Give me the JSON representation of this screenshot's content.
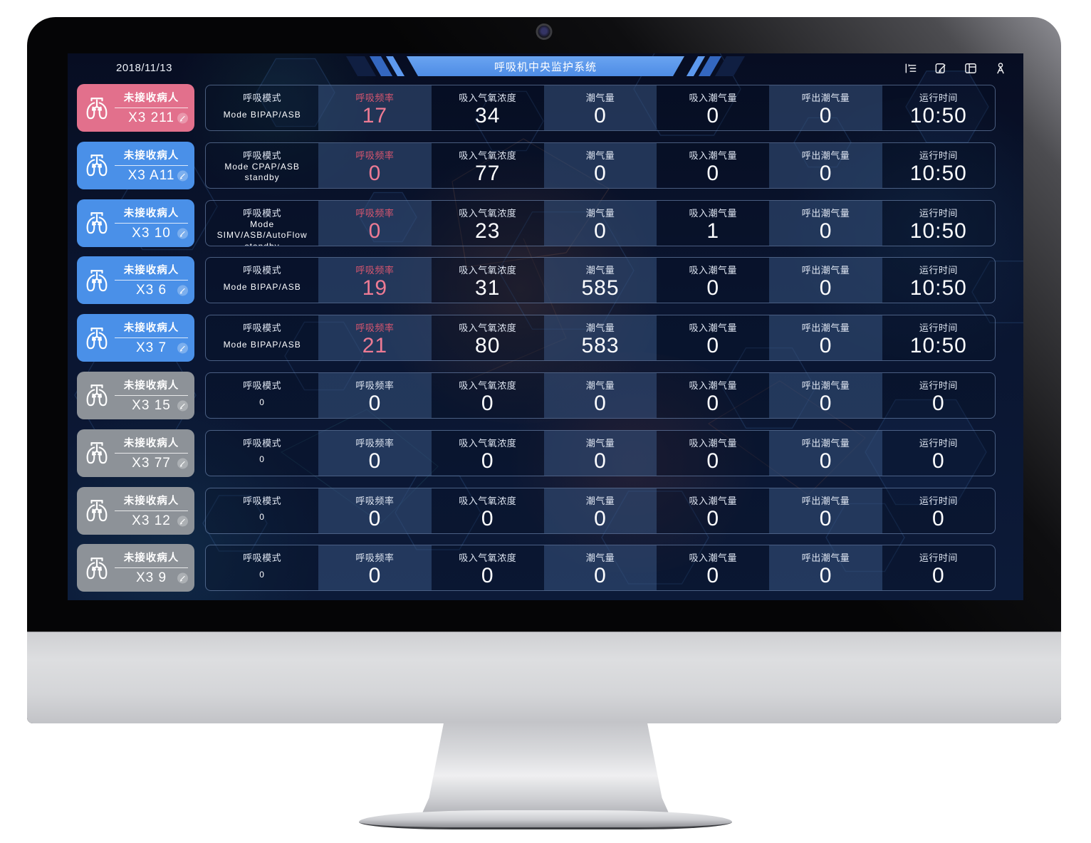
{
  "window": {
    "date": "2018/11/13",
    "title": "呼吸机中央监护系统"
  },
  "toolbar_icons": [
    {
      "name": "menu-fold-icon"
    },
    {
      "name": "edit-note-icon"
    },
    {
      "name": "layout-icon"
    },
    {
      "name": "user-icon"
    }
  ],
  "table": {
    "columns": [
      "呼吸模式",
      "呼吸频率",
      "吸入气氧浓度",
      "潮气量",
      "吸入潮气量",
      "呼出潮气量",
      "运行时间"
    ],
    "column_keys": [
      "mode",
      "rr",
      "fio2",
      "vt",
      "vti",
      "vte",
      "runtime"
    ]
  },
  "patients": [
    {
      "id": "X3 211",
      "status": "未接收病人",
      "state": "alarm",
      "values": [
        "Mode BIPAP/ASB",
        "17",
        "34",
        "0",
        "0",
        "0",
        "10:50"
      ]
    },
    {
      "id": "X3 A11",
      "status": "未接收病人",
      "state": "online",
      "values": [
        "Mode CPAP/ASB standby",
        "0",
        "77",
        "0",
        "0",
        "0",
        "10:50"
      ]
    },
    {
      "id": "X3 10",
      "status": "未接收病人",
      "state": "online",
      "values": [
        "Mode SIMV/ASB/AutoFlow standby",
        "0",
        "23",
        "0",
        "1",
        "0",
        "10:50"
      ]
    },
    {
      "id": "X3 6",
      "status": "未接收病人",
      "state": "online",
      "values": [
        "Mode BIPAP/ASB",
        "19",
        "31",
        "585",
        "0",
        "0",
        "10:50"
      ]
    },
    {
      "id": "X3 7",
      "status": "未接收病人",
      "state": "online",
      "values": [
        "Mode BIPAP/ASB",
        "21",
        "80",
        "583",
        "0",
        "0",
        "10:50"
      ]
    },
    {
      "id": "X3 15",
      "status": "未接收病人",
      "state": "offline",
      "values": [
        "0",
        "0",
        "0",
        "0",
        "0",
        "0",
        "0"
      ]
    },
    {
      "id": "X3 77",
      "status": "未接收病人",
      "state": "offline",
      "values": [
        "0",
        "0",
        "0",
        "0",
        "0",
        "0",
        "0"
      ]
    },
    {
      "id": "X3 12",
      "status": "未接收病人",
      "state": "offline",
      "values": [
        "0",
        "0",
        "0",
        "0",
        "0",
        "0",
        "0"
      ]
    },
    {
      "id": "X3 9",
      "status": "未接收病人",
      "state": "offline",
      "values": [
        "0",
        "0",
        "0",
        "0",
        "0",
        "0",
        "0"
      ]
    }
  ],
  "colors": {
    "alarm_card": "#e2708c",
    "online_card": "#4a90e8",
    "offline_card": "#8d9298",
    "accent_pink_label": "#d9566f",
    "accent_pink_value": "#ee7b94",
    "banner_blue": "#5694ea",
    "screen_bg": "#0a1530"
  }
}
